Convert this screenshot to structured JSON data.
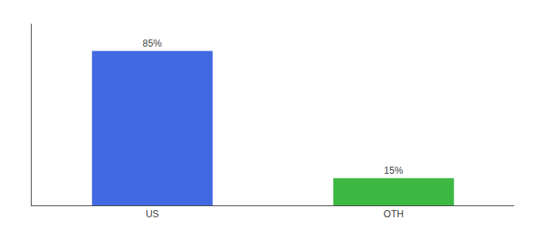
{
  "chart_data": {
    "type": "bar",
    "categories": [
      "US",
      "OTH"
    ],
    "values": [
      85,
      15
    ],
    "value_labels": [
      "85%",
      "15%"
    ],
    "data_labels": true,
    "colors": [
      "#4169e1",
      "#3cb843"
    ],
    "ylim": [
      0,
      100
    ],
    "yticks": [],
    "tick_labels": "x",
    "grid": false
  }
}
